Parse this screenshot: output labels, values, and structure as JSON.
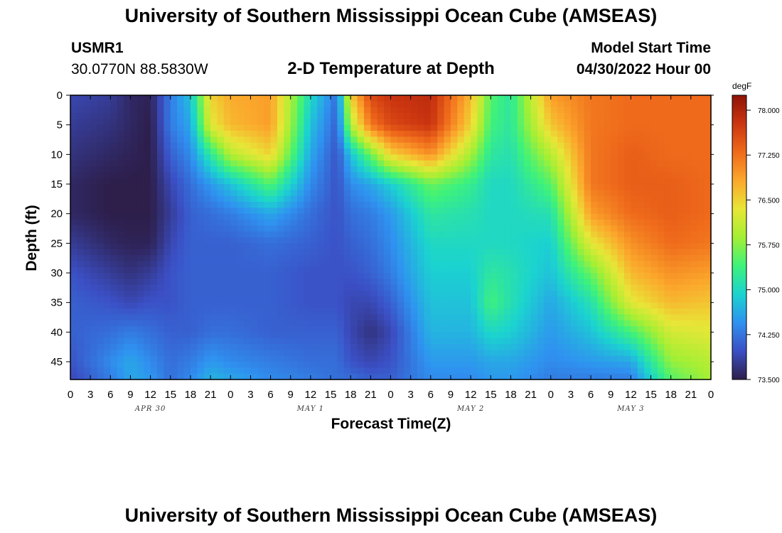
{
  "header": {
    "title": "University of Southern Mississippi Ocean Cube (AMSEAS)",
    "station_id": "USMR1",
    "station_coords": "30.0770N  88.5830W",
    "plot_title": "2-D Temperature at Depth",
    "model_start_label": "Model Start Time",
    "model_start_value": "04/30/2022 Hour 00"
  },
  "footer": {
    "title": "University of Southern Mississippi Ocean Cube (AMSEAS)"
  },
  "chart_data": {
    "type": "heatmap",
    "title": "2-D Temperature at Depth",
    "xlabel": "Forecast Time(Z)",
    "ylabel": "Depth (ft)",
    "x_ticks": [
      "0",
      "3",
      "6",
      "9",
      "12",
      "15",
      "18",
      "21",
      "0",
      "3",
      "6",
      "9",
      "12",
      "15",
      "18",
      "21",
      "0",
      "3",
      "6",
      "9",
      "12",
      "15",
      "18",
      "21",
      "0",
      "3",
      "6",
      "9",
      "12",
      "15",
      "18",
      "21",
      "0"
    ],
    "day_labels": [
      {
        "label": "APR 30",
        "hour": 12
      },
      {
        "label": "MAY 1",
        "hour": 36
      },
      {
        "label": "MAY 2",
        "hour": 60
      },
      {
        "label": "MAY 3",
        "hour": 84
      }
    ],
    "y_ticks": [
      0,
      5,
      10,
      15,
      20,
      25,
      30,
      35,
      40,
      45
    ],
    "xlim": [
      0,
      96
    ],
    "ylim": [
      0,
      48
    ],
    "colorbar": {
      "unit": "degF",
      "labels": [
        "78.000",
        "77.250",
        "76.500",
        "75.750",
        "75.000",
        "74.250",
        "73.500"
      ],
      "range": [
        73.5,
        78.25
      ],
      "colors": [
        "#2d1e4a",
        "#3b4fc4",
        "#2f92f0",
        "#1bd3d0",
        "#3ef27a",
        "#a4ef34",
        "#e8e637",
        "#fba82c",
        "#ef6a1b",
        "#cb3510",
        "#8e1206"
      ]
    },
    "depths": [
      0,
      5,
      10,
      15,
      20,
      25,
      30,
      35,
      40,
      45,
      48
    ],
    "times": [
      0,
      6,
      9,
      12,
      15,
      18,
      21,
      24,
      30,
      36,
      40,
      42,
      45,
      48,
      54,
      60,
      63,
      66,
      72,
      78,
      84,
      90,
      96
    ],
    "values": [
      [
        73.9,
        73.8,
        73.7,
        73.6,
        73.6,
        73.8,
        74.0,
        74.1,
        74.1,
        74.0,
        73.9
      ],
      [
        73.8,
        73.7,
        73.6,
        73.5,
        73.5,
        73.6,
        73.8,
        74.0,
        74.2,
        74.4,
        74.3
      ],
      [
        73.6,
        73.6,
        73.55,
        73.5,
        73.5,
        73.55,
        73.7,
        73.9,
        74.3,
        74.6,
        74.6
      ],
      [
        73.55,
        73.5,
        73.5,
        73.5,
        73.5,
        73.55,
        73.8,
        74.0,
        74.2,
        74.4,
        74.5
      ],
      [
        74.3,
        74.3,
        74.1,
        73.9,
        73.8,
        73.9,
        74.0,
        74.0,
        74.1,
        74.2,
        74.2
      ],
      [
        74.8,
        74.6,
        74.4,
        74.2,
        74.1,
        74.1,
        74.1,
        74.1,
        74.1,
        74.3,
        74.4
      ],
      [
        76.5,
        76.3,
        75.2,
        74.5,
        74.2,
        74.1,
        74.1,
        74.1,
        74.2,
        74.5,
        74.7
      ],
      [
        76.8,
        76.7,
        76.0,
        74.8,
        74.3,
        74.1,
        74.1,
        74.1,
        74.2,
        74.4,
        74.6
      ],
      [
        76.9,
        76.9,
        76.5,
        75.5,
        74.6,
        74.2,
        74.1,
        74.1,
        74.1,
        74.3,
        74.4
      ],
      [
        75.0,
        74.8,
        74.6,
        74.4,
        74.2,
        74.1,
        74.0,
        74.0,
        74.1,
        74.2,
        74.3
      ],
      [
        74.2,
        74.1,
        74.0,
        74.0,
        74.0,
        74.0,
        74.0,
        74.0,
        74.1,
        74.2,
        74.2
      ],
      [
        76.5,
        76.0,
        74.8,
        74.4,
        74.2,
        74.1,
        74.0,
        73.9,
        73.9,
        74.0,
        74.2
      ],
      [
        77.6,
        77.2,
        75.6,
        74.6,
        74.3,
        74.2,
        74.1,
        73.9,
        73.7,
        73.9,
        74.1
      ],
      [
        77.8,
        77.6,
        76.5,
        74.9,
        74.5,
        74.4,
        74.3,
        74.1,
        73.9,
        74.0,
        74.1
      ],
      [
        77.9,
        77.8,
        77.0,
        75.6,
        75.2,
        75.0,
        74.9,
        74.8,
        74.7,
        74.5,
        74.4
      ],
      [
        76.7,
        76.5,
        75.9,
        75.3,
        75.1,
        75.0,
        74.9,
        74.8,
        74.7,
        74.5,
        74.4
      ],
      [
        75.5,
        75.4,
        75.2,
        75.0,
        75.0,
        75.0,
        75.2,
        75.4,
        75.0,
        74.6,
        74.5
      ],
      [
        75.2,
        75.2,
        75.1,
        75.0,
        75.0,
        75.0,
        75.1,
        75.1,
        74.9,
        74.6,
        74.5
      ],
      [
        76.9,
        76.6,
        76.0,
        75.5,
        75.1,
        74.9,
        74.8,
        74.6,
        74.5,
        74.4,
        74.3
      ],
      [
        77.2,
        77.2,
        77.2,
        77.2,
        76.9,
        76.3,
        75.6,
        75.1,
        74.8,
        74.5,
        74.3
      ],
      [
        77.3,
        77.3,
        77.4,
        77.4,
        77.3,
        77.0,
        76.7,
        76.3,
        75.4,
        74.6,
        74.3
      ],
      [
        77.3,
        77.3,
        77.3,
        77.4,
        77.4,
        77.3,
        77.0,
        76.7,
        76.2,
        75.8,
        75.5
      ],
      [
        77.3,
        77.3,
        77.3,
        77.3,
        77.3,
        77.2,
        76.9,
        76.6,
        76.3,
        76.0,
        75.9
      ]
    ]
  }
}
